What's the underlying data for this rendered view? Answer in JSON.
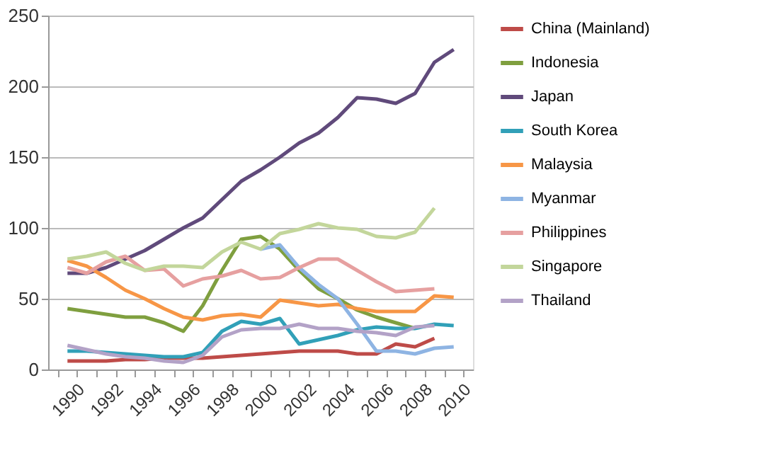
{
  "chart_data": {
    "type": "line",
    "categories": [
      "1990",
      null,
      "1992",
      null,
      "1994",
      null,
      "1996",
      null,
      "1998",
      null,
      "2000",
      null,
      "2002",
      null,
      "2004",
      null,
      "2006",
      null,
      "2008",
      null,
      "2010"
    ],
    "series": [
      {
        "name": "China (Mainland)",
        "color": "#be4b48",
        "values": [
          6,
          6,
          6,
          7,
          7,
          8,
          8,
          8,
          9,
          10,
          11,
          12,
          13,
          13,
          13,
          11,
          11,
          18,
          16,
          22,
          null
        ]
      },
      {
        "name": "Indonesia",
        "color": "#7f9f3f",
        "values": [
          43,
          41,
          39,
          37,
          37,
          33,
          27,
          45,
          70,
          92,
          94,
          85,
          70,
          57,
          50,
          42,
          37,
          33,
          29,
          null,
          null
        ]
      },
      {
        "name": "Japan",
        "color": "#604a7b",
        "values": [
          68,
          68,
          72,
          78,
          84,
          92,
          100,
          107,
          120,
          133,
          141,
          150,
          160,
          167,
          178,
          192,
          191,
          188,
          195,
          217,
          226
        ]
      },
      {
        "name": "South Korea",
        "color": "#31a0b8",
        "values": [
          13,
          13,
          12,
          11,
          10,
          9,
          9,
          12,
          27,
          34,
          32,
          36,
          18,
          21,
          24,
          28,
          30,
          29,
          29,
          32,
          31
        ]
      },
      {
        "name": "Malaysia",
        "color": "#f79646",
        "values": [
          77,
          73,
          65,
          56,
          50,
          43,
          37,
          35,
          38,
          39,
          37,
          49,
          47,
          45,
          46,
          43,
          41,
          41,
          41,
          52,
          51
        ]
      },
      {
        "name": "Myanmar",
        "color": "#8eb4e3",
        "values": [
          null,
          null,
          null,
          null,
          null,
          null,
          null,
          null,
          null,
          null,
          85,
          88,
          72,
          60,
          50,
          32,
          13,
          13,
          11,
          15,
          16
        ]
      },
      {
        "name": "Philippines",
        "color": "#e6a0a0",
        "values": [
          72,
          68,
          76,
          80,
          70,
          71,
          59,
          64,
          66,
          70,
          64,
          65,
          72,
          78,
          78,
          70,
          62,
          55,
          56,
          57,
          null
        ]
      },
      {
        "name": "Singapore",
        "color": "#c3d69b",
        "values": [
          78,
          80,
          83,
          75,
          70,
          73,
          73,
          72,
          83,
          90,
          85,
          96,
          99,
          103,
          100,
          99,
          94,
          93,
          97,
          114,
          null
        ]
      },
      {
        "name": "Thailand",
        "color": "#b3a2c7",
        "values": [
          17,
          14,
          11,
          9,
          8,
          6,
          5,
          10,
          23,
          28,
          29,
          29,
          32,
          29,
          29,
          27,
          26,
          24,
          30,
          31,
          null
        ]
      }
    ],
    "ylim": [
      0,
      250
    ],
    "yticks": [
      0,
      50,
      100,
      150,
      200,
      250
    ],
    "grid": "y",
    "legend": "right",
    "marker": "none",
    "line_style": "solid"
  }
}
